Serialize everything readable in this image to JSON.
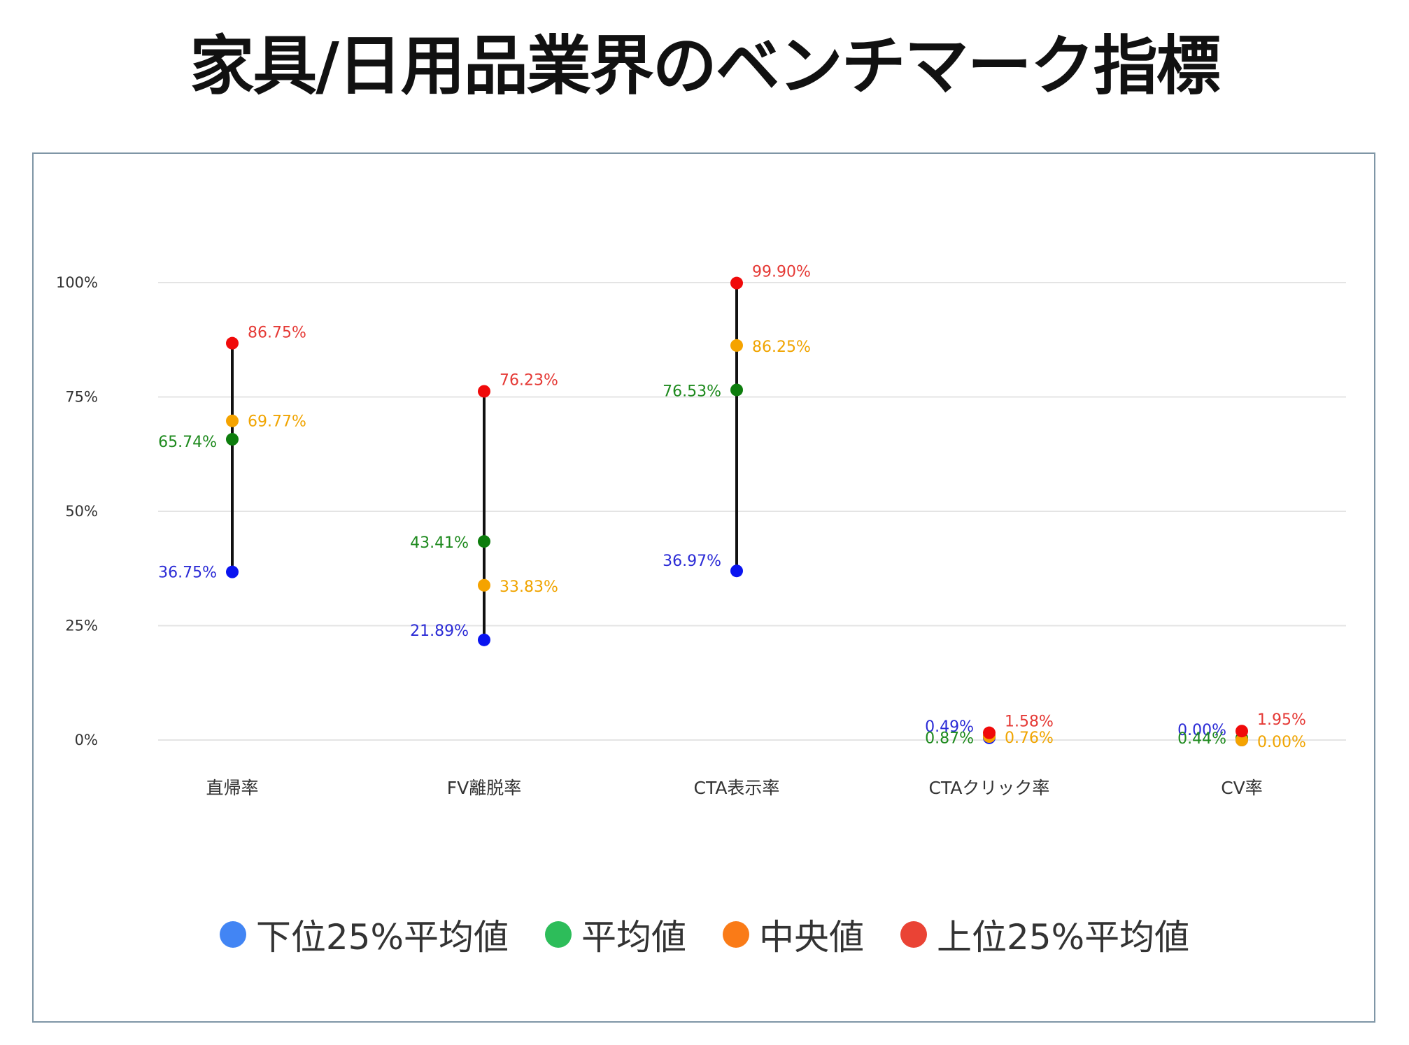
{
  "title": "家具/日用品業界のベンチマーク指標",
  "chart_data": {
    "type": "dot-range",
    "categories": [
      "直帰率",
      "FV離脱率",
      "CTA表示率",
      "CTAクリック率",
      "CV率"
    ],
    "y_ticks": [
      "0%",
      "25%",
      "50%",
      "75%",
      "100%"
    ],
    "ylim": [
      0,
      100
    ],
    "grid": true,
    "legend_position": "bottom",
    "series": [
      {
        "name": "下位25%平均値",
        "key": "low25",
        "values": [
          36.75,
          21.89,
          36.97,
          0.49,
          0.0
        ],
        "labels": [
          "36.75%",
          "21.89%",
          "36.97%",
          "0.49%",
          "0.00%"
        ],
        "point_color": "#0a14f0",
        "label_color": "#2b2bd6",
        "legend_color": "#4285f4"
      },
      {
        "name": "平均値",
        "key": "mean",
        "values": [
          65.74,
          43.41,
          76.53,
          0.87,
          0.44
        ],
        "labels": [
          "65.74%",
          "43.41%",
          "76.53%",
          "0.87%",
          "0.44%"
        ],
        "point_color": "#0d7d0d",
        "label_color": "#1e8a1e",
        "legend_color": "#2dbd5a"
      },
      {
        "name": "中央値",
        "key": "median",
        "values": [
          69.77,
          33.83,
          86.25,
          0.76,
          0.0
        ],
        "labels": [
          "69.77%",
          "33.83%",
          "86.25%",
          "0.76%",
          "0.00%"
        ],
        "point_color": "#f5a300",
        "label_color": "#f0a400",
        "legend_color": "#fa7b17"
      },
      {
        "name": "上位25%平均値",
        "key": "top25",
        "values": [
          86.75,
          76.23,
          99.9,
          1.58,
          1.95
        ],
        "labels": [
          "86.75%",
          "76.23%",
          "99.90%",
          "1.58%",
          "1.95%"
        ],
        "point_color": "#f00a0a",
        "label_color": "#e53935",
        "legend_color": "#ea4335"
      }
    ]
  }
}
